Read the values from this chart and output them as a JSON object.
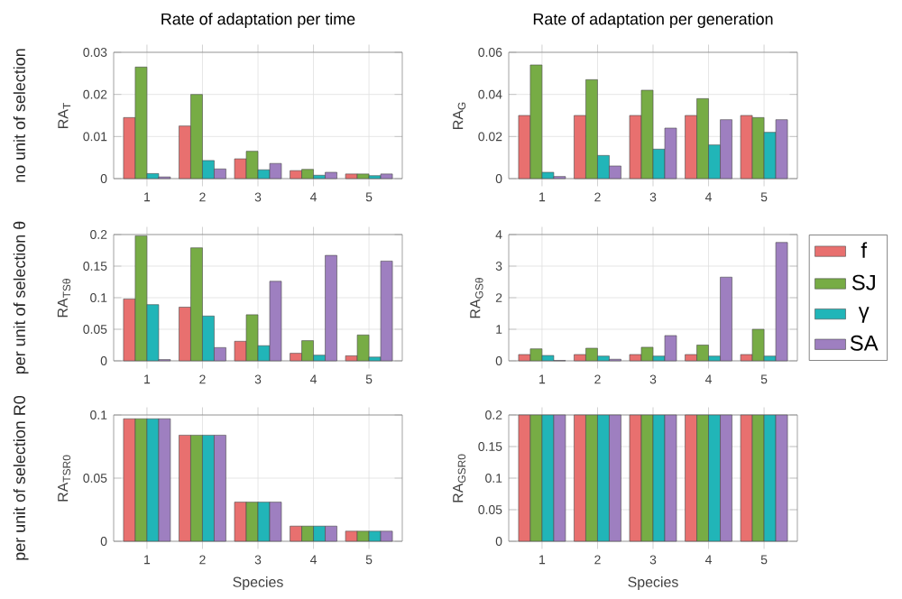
{
  "chart_data": [
    {
      "type": "bar",
      "title": "Rate of adaptation per time",
      "ylabel": "RA$_{T}$",
      "annotations": [
        "no unit of selection"
      ],
      "categories": [
        "1",
        "2",
        "3",
        "4",
        "5"
      ],
      "ylim": [
        0,
        0.03
      ],
      "yticks": [
        0,
        0.01,
        0.02,
        0.03
      ],
      "grid": true,
      "series": [
        {
          "color": "#e8706f",
          "values": [
            0.0145,
            0.0125,
            0.0047,
            0.0019,
            0.0011
          ]
        },
        {
          "color": "#77ac45",
          "values": [
            0.0265,
            0.02,
            0.0065,
            0.0022,
            0.0011
          ]
        },
        {
          "color": "#21b5b8",
          "values": [
            0.0012,
            0.0043,
            0.0021,
            0.0008,
            0.0007
          ]
        },
        {
          "color": "#9e7fc0",
          "values": [
            0.0004,
            0.0023,
            0.0036,
            0.0015,
            0.0011
          ]
        }
      ]
    },
    {
      "type": "bar",
      "title": "Rate of adaptation per generation",
      "ylabel": "RA$_{G}$",
      "categories": [
        "1",
        "2",
        "3",
        "4",
        "5"
      ],
      "ylim": [
        0,
        0.06
      ],
      "yticks": [
        0,
        0.02,
        0.04,
        0.06
      ],
      "grid": true,
      "series": [
        {
          "color": "#e8706f",
          "values": [
            0.03,
            0.03,
            0.03,
            0.03,
            0.03
          ]
        },
        {
          "color": "#77ac45",
          "values": [
            0.054,
            0.047,
            0.042,
            0.038,
            0.029
          ]
        },
        {
          "color": "#21b5b8",
          "values": [
            0.003,
            0.011,
            0.014,
            0.016,
            0.022
          ]
        },
        {
          "color": "#9e7fc0",
          "values": [
            0.001,
            0.006,
            0.024,
            0.028,
            0.028
          ]
        }
      ]
    },
    {
      "type": "bar",
      "ylabel": "RA$_{TSθ}$",
      "annotations": [
        "per unit of selection θ"
      ],
      "categories": [
        "1",
        "2",
        "3",
        "4",
        "5"
      ],
      "ylim": [
        0,
        0.2
      ],
      "yticks": [
        0,
        0.05,
        0.1,
        0.15,
        0.2
      ],
      "grid": true,
      "series": [
        {
          "color": "#e8706f",
          "values": [
            0.098,
            0.085,
            0.031,
            0.012,
            0.008
          ]
        },
        {
          "color": "#77ac45",
          "values": [
            0.198,
            0.179,
            0.073,
            0.032,
            0.041
          ]
        },
        {
          "color": "#21b5b8",
          "values": [
            0.089,
            0.071,
            0.024,
            0.009,
            0.006
          ]
        },
        {
          "color": "#9e7fc0",
          "values": [
            0.002,
            0.021,
            0.126,
            0.167,
            0.158
          ]
        }
      ]
    },
    {
      "type": "bar",
      "ylabel": "RA$_{GSθ}$",
      "categories": [
        "1",
        "2",
        "3",
        "4",
        "5"
      ],
      "ylim": [
        0,
        4
      ],
      "yticks": [
        0,
        1,
        2,
        3,
        4
      ],
      "grid": true,
      "legend": "right",
      "series": [
        {
          "name": "f",
          "color": "#e8706f",
          "values": [
            0.2,
            0.2,
            0.2,
            0.2,
            0.2
          ]
        },
        {
          "name": "SJ",
          "color": "#77ac45",
          "values": [
            0.38,
            0.4,
            0.43,
            0.5,
            1.0
          ]
        },
        {
          "name": "γ",
          "color": "#21b5b8",
          "values": [
            0.17,
            0.15,
            0.15,
            0.15,
            0.15
          ]
        },
        {
          "name": "SA",
          "color": "#9e7fc0",
          "values": [
            0.01,
            0.05,
            0.8,
            2.65,
            3.75
          ]
        }
      ]
    },
    {
      "type": "bar",
      "xlabel": "Species",
      "ylabel": "RA$_{TSR0}$",
      "annotations": [
        "per unit of selection R0"
      ],
      "categories": [
        "1",
        "2",
        "3",
        "4",
        "5"
      ],
      "ylim": [
        0,
        0.1
      ],
      "yticks": [
        0,
        0.05,
        0.1
      ],
      "grid": true,
      "series": [
        {
          "color": "#e8706f",
          "values": [
            0.097,
            0.084,
            0.031,
            0.012,
            0.008
          ]
        },
        {
          "color": "#77ac45",
          "values": [
            0.097,
            0.084,
            0.031,
            0.012,
            0.008
          ]
        },
        {
          "color": "#21b5b8",
          "values": [
            0.097,
            0.084,
            0.031,
            0.012,
            0.008
          ]
        },
        {
          "color": "#9e7fc0",
          "values": [
            0.097,
            0.084,
            0.031,
            0.012,
            0.008
          ]
        }
      ]
    },
    {
      "type": "bar",
      "xlabel": "Species",
      "ylabel": "RA$_{GSR0}$",
      "categories": [
        "1",
        "2",
        "3",
        "4",
        "5"
      ],
      "ylim": [
        0,
        0.2
      ],
      "yticks": [
        0,
        0.05,
        0.1,
        0.15,
        0.2
      ],
      "grid": true,
      "series": [
        {
          "color": "#e8706f",
          "values": [
            0.2,
            0.2,
            0.2,
            0.2,
            0.2
          ]
        },
        {
          "color": "#77ac45",
          "values": [
            0.2,
            0.2,
            0.2,
            0.2,
            0.2
          ]
        },
        {
          "color": "#21b5b8",
          "values": [
            0.2,
            0.2,
            0.2,
            0.2,
            0.2
          ]
        },
        {
          "color": "#9e7fc0",
          "values": [
            0.2,
            0.2,
            0.2,
            0.2,
            0.2
          ]
        }
      ]
    }
  ]
}
